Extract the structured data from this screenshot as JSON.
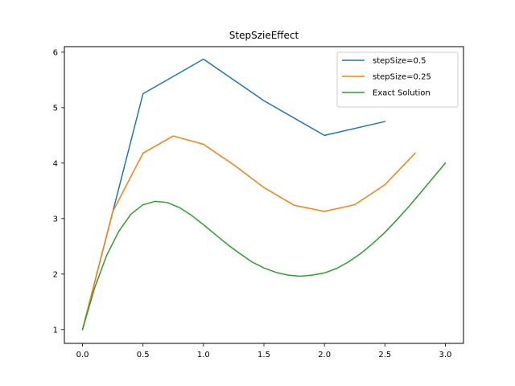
{
  "chart_data": {
    "type": "line",
    "title": "StepSzieEffect",
    "xlabel": "",
    "ylabel": "",
    "xlim": [
      -0.15,
      3.15
    ],
    "ylim": [
      0.75,
      6.1
    ],
    "x_ticks": [
      0.0,
      0.5,
      1.0,
      1.5,
      2.0,
      2.5,
      3.0
    ],
    "x_tick_labels": [
      "0.0",
      "0.5",
      "1.0",
      "1.5",
      "2.0",
      "2.5",
      "3.0"
    ],
    "y_ticks": [
      1,
      2,
      3,
      4,
      5,
      6
    ],
    "y_tick_labels": [
      "1",
      "2",
      "3",
      "4",
      "5",
      "6"
    ],
    "grid": false,
    "legend_position": "top-right",
    "series": [
      {
        "name": "stepSize=0.5",
        "color": "#1f77b4",
        "x": [
          0.0,
          0.25,
          0.5,
          1.0,
          1.5,
          2.0,
          2.5
        ],
        "y": [
          1.0,
          3.12,
          5.25,
          5.875,
          5.125,
          4.5,
          4.75
        ]
      },
      {
        "name": "stepSize=0.25",
        "color": "#ff7f0e",
        "x": [
          0.0,
          0.25,
          0.5,
          0.75,
          1.0,
          1.25,
          1.5,
          1.75,
          2.0,
          2.25,
          2.5,
          2.75
        ],
        "y": [
          1.0,
          3.125,
          4.18,
          4.49,
          4.34,
          3.97,
          3.56,
          3.24,
          3.13,
          3.25,
          3.61,
          4.18
        ]
      },
      {
        "name": "Exact Solution",
        "color": "#2ca02c",
        "x": [
          0.0,
          0.1,
          0.2,
          0.3,
          0.4,
          0.5,
          0.6,
          0.7,
          0.8,
          0.9,
          1.0,
          1.1,
          1.2,
          1.3,
          1.4,
          1.5,
          1.6,
          1.7,
          1.8,
          1.9,
          2.0,
          2.1,
          2.2,
          2.3,
          2.4,
          2.5,
          2.6,
          2.7,
          2.8,
          2.9,
          3.0
        ],
        "y": [
          1.0,
          1.75,
          2.34,
          2.77,
          3.08,
          3.25,
          3.31,
          3.29,
          3.2,
          3.06,
          2.89,
          2.71,
          2.53,
          2.37,
          2.22,
          2.11,
          2.03,
          1.98,
          1.96,
          1.98,
          2.02,
          2.1,
          2.22,
          2.37,
          2.55,
          2.75,
          2.98,
          3.22,
          3.48,
          3.74,
          4.0
        ]
      }
    ]
  }
}
